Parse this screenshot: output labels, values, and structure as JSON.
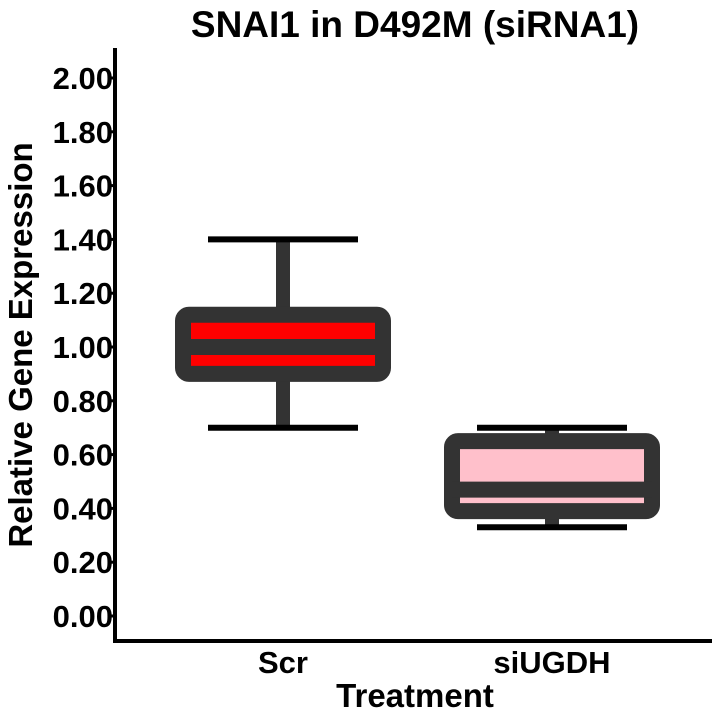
{
  "chart_data": {
    "type": "box",
    "title": "SNAI1 in D492M (siRNA1)",
    "xlabel": "Treatment",
    "ylabel": "Relative Gene Expression",
    "ylim": [
      -0.1,
      2.05
    ],
    "yticks": [
      0.0,
      0.2,
      0.4,
      0.6,
      0.8,
      1.0,
      1.2,
      1.4,
      1.6,
      1.8,
      2.0
    ],
    "ytick_labels": [
      "0.00",
      "0.20",
      "0.40",
      "0.60",
      "0.80",
      "1.00",
      "1.20",
      "1.40",
      "1.60",
      "1.80",
      "2.00"
    ],
    "categories": [
      "Scr",
      "siUGDH"
    ],
    "boxes": [
      {
        "category": "Scr",
        "min": 0.7,
        "q1": 0.9,
        "median": 1.0,
        "q3": 1.12,
        "max": 1.4,
        "fill": "#ff0000"
      },
      {
        "category": "siUGDH",
        "min": 0.33,
        "q1": 0.39,
        "median": 0.47,
        "q3": 0.65,
        "max": 0.7,
        "fill": "#ffc0cb"
      }
    ],
    "box_edge_color": "#333333",
    "axis_color": "#000000",
    "grid": false,
    "legend": "none"
  }
}
